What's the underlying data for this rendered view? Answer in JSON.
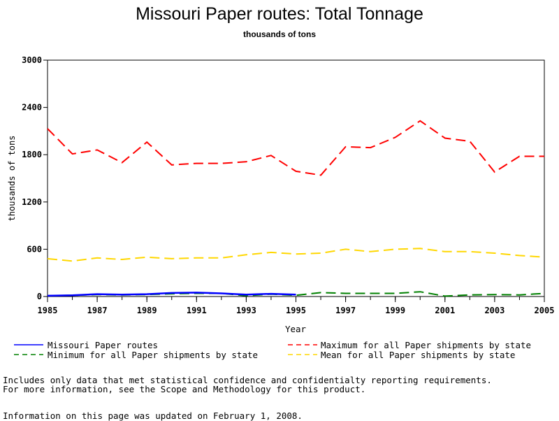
{
  "chart_data": {
    "type": "line",
    "title": "Missouri Paper routes: Total Tonnage",
    "subtitle": "thousands of tons",
    "xlabel": "Year",
    "ylabel": "thousands of tons",
    "xlim": [
      1985,
      2005
    ],
    "ylim": [
      0,
      3000
    ],
    "x_ticks": [
      "1985",
      "1987",
      "1989",
      "1991",
      "1993",
      "1995",
      "1997",
      "1999",
      "2001",
      "2003",
      "2005"
    ],
    "y_ticks": [
      "0",
      "600",
      "1200",
      "1800",
      "2400",
      "3000"
    ],
    "grid": false,
    "legend_position": "bottom",
    "series": [
      {
        "name": "Missouri Paper routes",
        "color": "#0000ff",
        "style": "solid",
        "x": [
          1985,
          1986,
          1987,
          1988,
          1989,
          1990,
          1991,
          1992,
          1993,
          1994,
          1995
        ],
        "values": [
          10,
          15,
          30,
          25,
          30,
          45,
          50,
          40,
          25,
          35,
          25
        ]
      },
      {
        "name": "Maximum for all Paper shipments by state",
        "color": "#ff0000",
        "style": "dashed",
        "x": [
          1985,
          1986,
          1987,
          1988,
          1989,
          1990,
          1991,
          1992,
          1993,
          1994,
          1995,
          1996,
          1997,
          1998,
          1999,
          2000,
          2001,
          2002,
          2003,
          2004,
          2005
        ],
        "values": [
          2130,
          1810,
          1860,
          1700,
          1960,
          1670,
          1690,
          1690,
          1710,
          1790,
          1590,
          1540,
          1900,
          1890,
          2020,
          2230,
          2010,
          1970,
          1580,
          1780,
          1780
        ]
      },
      {
        "name": "Minimum for all Paper shipments by state",
        "color": "#008000",
        "style": "dashed",
        "x": [
          1985,
          1986,
          1987,
          1988,
          1989,
          1990,
          1991,
          1992,
          1993,
          1994,
          1995,
          1996,
          1997,
          1998,
          1999,
          2000,
          2001,
          2002,
          2003,
          2004,
          2005
        ],
        "values": [
          10,
          15,
          25,
          20,
          25,
          35,
          40,
          40,
          10,
          30,
          15,
          50,
          40,
          40,
          40,
          60,
          5,
          20,
          25,
          20,
          40
        ]
      },
      {
        "name": "Mean for all Paper shipments by state",
        "color": "#ffd700",
        "style": "dashed",
        "x": [
          1985,
          1986,
          1987,
          1988,
          1989,
          1990,
          1991,
          1992,
          1993,
          1994,
          1995,
          1996,
          1997,
          1998,
          1999,
          2000,
          2001,
          2002,
          2003,
          2004,
          2005
        ],
        "values": [
          480,
          450,
          490,
          470,
          500,
          480,
          490,
          490,
          530,
          560,
          540,
          550,
          600,
          570,
          600,
          610,
          570,
          570,
          550,
          520,
          500
        ]
      }
    ]
  },
  "legend": {
    "item1": "Missouri Paper routes",
    "item2": "Maximum for all Paper shipments by state",
    "item3": "Minimum for all Paper shipments by state",
    "item4": "Mean for all Paper shipments by state"
  },
  "footnotes": {
    "line1": "Includes only data that met statistical confidence and confidentialty reporting requirements.",
    "line2": "For more information, see the Scope and Methodology for this product.",
    "line3": "Information on this page was updated on February 1, 2008."
  }
}
